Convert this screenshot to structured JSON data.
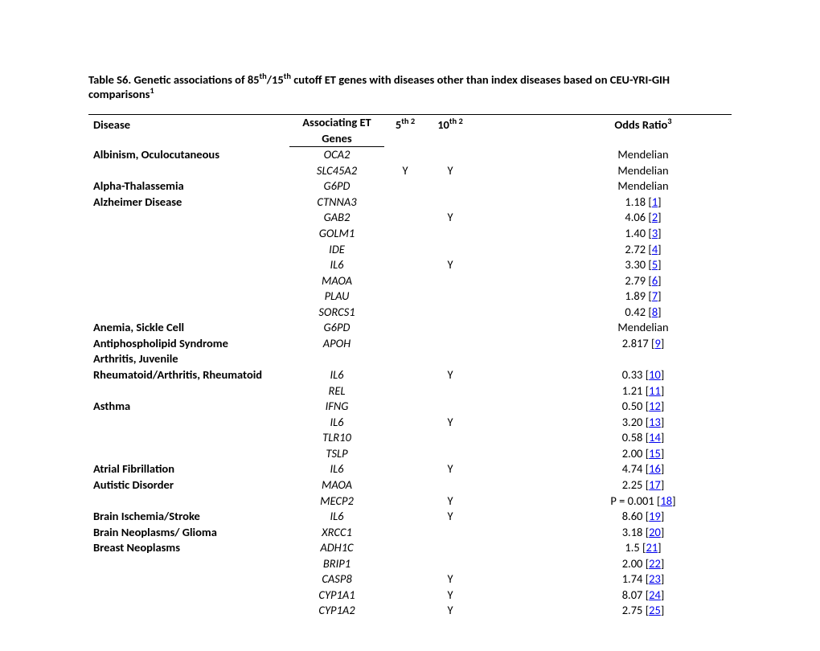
{
  "title_prefix": "Table S6.  Genetic associations of 85",
  "title_mid1": "/15",
  "title_mid2": " cutoff ET genes with diseases other than index diseases based on CEU-YRI-GIH comparisons",
  "title_sup1": "th",
  "title_sup2": "th",
  "title_sup3": "1",
  "head_disease": "Disease",
  "head_genes_l1": "Associating ET",
  "head_genes_l2": "Genes",
  "head_5th": "5",
  "head_5th_sup": "th 2",
  "head_10th": "10",
  "head_10th_sup": "th 2",
  "head_odds": "Odds Ratio",
  "head_odds_sup": "3",
  "rows": [
    {
      "disease": "Albinism, Oculocutaneous",
      "gene": "OCA2",
      "c5": "",
      "c10": "",
      "odds": "Mendelian",
      "ref": ""
    },
    {
      "disease": "",
      "gene": "SLC45A2",
      "c5": "Y",
      "c10": "Y",
      "odds": "Mendelian",
      "ref": ""
    },
    {
      "disease": "Alpha-Thalassemia",
      "gene": "G6PD",
      "c5": "",
      "c10": "",
      "odds": "Mendelian",
      "ref": ""
    },
    {
      "disease": "Alzheimer Disease",
      "gene": "CTNNA3",
      "c5": "",
      "c10": "",
      "odds": "1.18 ",
      "ref": "1"
    },
    {
      "disease": "",
      "gene": "GAB2",
      "c5": "",
      "c10": "Y",
      "odds": "4.06 ",
      "ref": "2"
    },
    {
      "disease": "",
      "gene": "GOLM1",
      "c5": "",
      "c10": "",
      "odds": "1.40 ",
      "ref": "3"
    },
    {
      "disease": "",
      "gene": "IDE",
      "c5": "",
      "c10": "",
      "odds": "2.72 ",
      "ref": "4"
    },
    {
      "disease": "",
      "gene": "IL6",
      "c5": "",
      "c10": "Y",
      "odds": "3.30 ",
      "ref": "5"
    },
    {
      "disease": "",
      "gene": "MAOA",
      "c5": "",
      "c10": "",
      "odds": "2.79 ",
      "ref": "6"
    },
    {
      "disease": "",
      "gene": "PLAU",
      "c5": "",
      "c10": "",
      "odds": "1.89 ",
      "ref": "7"
    },
    {
      "disease": "",
      "gene": "SORCS1",
      "c5": "",
      "c10": "",
      "odds": "0.42 ",
      "ref": "8"
    },
    {
      "disease": "Anemia, Sickle Cell",
      "gene": "G6PD",
      "c5": "",
      "c10": "",
      "odds": "Mendelian",
      "ref": ""
    },
    {
      "disease": "Antiphospholipid Syndrome",
      "gene": "APOH",
      "c5": "",
      "c10": "",
      "odds": "2.817 ",
      "ref": "9"
    },
    {
      "disease": "Arthritis, Juvenile",
      "gene": "",
      "c5": "",
      "c10": "",
      "odds": "",
      "ref": ""
    },
    {
      "disease": "Rheumatoid/Arthritis, Rheumatoid",
      "gene": "IL6",
      "c5": "",
      "c10": "Y",
      "odds": "0.33 ",
      "ref": "10"
    },
    {
      "disease": "",
      "gene": "REL",
      "c5": "",
      "c10": "",
      "odds": "1.21 ",
      "ref": "11"
    },
    {
      "disease": "Asthma",
      "gene": "IFNG",
      "c5": "",
      "c10": "",
      "odds": "0.50 ",
      "ref": "12"
    },
    {
      "disease": "",
      "gene": "IL6",
      "c5": "",
      "c10": "Y",
      "odds": "3.20 ",
      "ref": "13"
    },
    {
      "disease": "",
      "gene": "TLR10",
      "c5": "",
      "c10": "",
      "odds": "0.58 ",
      "ref": "14"
    },
    {
      "disease": "",
      "gene": "TSLP",
      "c5": "",
      "c10": "",
      "odds": "2.00 ",
      "ref": "15"
    },
    {
      "disease": "Atrial Fibrillation",
      "gene": "IL6",
      "c5": "",
      "c10": "Y",
      "odds": "4.74 ",
      "ref": "16"
    },
    {
      "disease": "Autistic Disorder",
      "gene": "MAOA",
      "c5": "",
      "c10": "",
      "odds": "2.25 ",
      "ref": "17"
    },
    {
      "disease": "",
      "gene": "MECP2",
      "c5": "",
      "c10": "Y",
      "odds": "P = 0.001 ",
      "ref": "18"
    },
    {
      "disease": "Brain Ischemia/Stroke",
      "gene": "IL6",
      "c5": "",
      "c10": "Y",
      "odds": "8.60 ",
      "ref": "19"
    },
    {
      "disease": "Brain Neoplasms/ Glioma",
      "gene": "XRCC1",
      "c5": "",
      "c10": "",
      "odds": "3.18 ",
      "ref": "20"
    },
    {
      "disease": "Breast Neoplasms",
      "gene": "ADH1C",
      "c5": "",
      "c10": "",
      "odds": "1.5 ",
      "ref": "21"
    },
    {
      "disease": "",
      "gene": "BRIP1",
      "c5": "",
      "c10": "",
      "odds": "2.00 ",
      "ref": "22"
    },
    {
      "disease": "",
      "gene": "CASP8",
      "c5": "",
      "c10": "Y",
      "odds": "1.74 ",
      "ref": "23"
    },
    {
      "disease": "",
      "gene": "CYP1A1",
      "c5": "",
      "c10": "Y",
      "odds": "8.07 ",
      "ref": "24"
    },
    {
      "disease": "",
      "gene": "CYP1A2",
      "c5": "",
      "c10": "Y",
      "odds": "2.75 ",
      "ref": "25"
    }
  ]
}
